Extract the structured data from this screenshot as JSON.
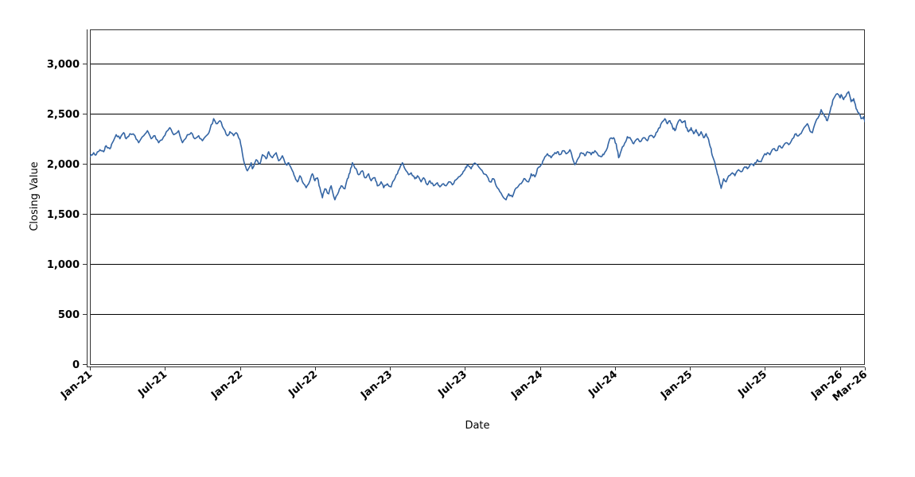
{
  "chart_data": {
    "type": "line",
    "title": "",
    "xlabel": "Date",
    "ylabel": "Closing Value",
    "x_unit": "months since Jan-2021",
    "xlim": [
      0,
      62
    ],
    "ylim": [
      0,
      3341
    ],
    "grid": "horizontal-solid-black",
    "legend": "none",
    "line_color": "#3465a4",
    "x_ticks": [
      {
        "label": "Jan-21",
        "m": 0
      },
      {
        "label": "Jul-21",
        "m": 6
      },
      {
        "label": "Jan-22",
        "m": 12
      },
      {
        "label": "Jul-22",
        "m": 18
      },
      {
        "label": "Jan-23",
        "m": 24
      },
      {
        "label": "Jul-23",
        "m": 30
      },
      {
        "label": "Jan-24",
        "m": 36
      },
      {
        "label": "Jul-24",
        "m": 42
      },
      {
        "label": "Jan-25",
        "m": 48
      },
      {
        "label": "Jul-25",
        "m": 54
      },
      {
        "label": "Jan-26",
        "m": 60
      },
      {
        "label": "Mar-26",
        "m": 62
      }
    ],
    "y_ticks": [
      {
        "label": "0",
        "v": 0
      },
      {
        "label": "500",
        "v": 500
      },
      {
        "label": "1,000",
        "v": 1000
      },
      {
        "label": "1,500",
        "v": 1500
      },
      {
        "label": "2,000",
        "v": 2000
      },
      {
        "label": "2,500",
        "v": 2500
      },
      {
        "label": "3,000",
        "v": 3000
      }
    ],
    "series": [
      {
        "name": "Closing Value",
        "color": "#3465a4",
        "points": [
          [
            0.0,
            2070
          ],
          [
            0.3,
            2110
          ],
          [
            0.5,
            2090
          ],
          [
            0.8,
            2140
          ],
          [
            1.1,
            2120
          ],
          [
            1.3,
            2180
          ],
          [
            1.6,
            2150
          ],
          [
            1.8,
            2210
          ],
          [
            2.1,
            2290
          ],
          [
            2.4,
            2250
          ],
          [
            2.7,
            2310
          ],
          [
            2.9,
            2250
          ],
          [
            3.2,
            2300
          ],
          [
            3.6,
            2280
          ],
          [
            3.9,
            2210
          ],
          [
            4.3,
            2280
          ],
          [
            4.6,
            2330
          ],
          [
            4.9,
            2250
          ],
          [
            5.2,
            2280
          ],
          [
            5.5,
            2210
          ],
          [
            5.9,
            2270
          ],
          [
            6.2,
            2330
          ],
          [
            6.4,
            2360
          ],
          [
            6.7,
            2290
          ],
          [
            7.1,
            2330
          ],
          [
            7.4,
            2210
          ],
          [
            7.8,
            2290
          ],
          [
            8.1,
            2310
          ],
          [
            8.4,
            2250
          ],
          [
            8.7,
            2280
          ],
          [
            9.0,
            2230
          ],
          [
            9.4,
            2290
          ],
          [
            9.6,
            2340
          ],
          [
            9.9,
            2450
          ],
          [
            10.1,
            2400
          ],
          [
            10.4,
            2430
          ],
          [
            10.7,
            2350
          ],
          [
            11.0,
            2280
          ],
          [
            11.2,
            2320
          ],
          [
            11.5,
            2280
          ],
          [
            11.7,
            2310
          ],
          [
            12.0,
            2240
          ],
          [
            12.2,
            2100
          ],
          [
            12.4,
            1990
          ],
          [
            12.6,
            1930
          ],
          [
            12.9,
            2010
          ],
          [
            13.0,
            1950
          ],
          [
            13.3,
            2040
          ],
          [
            13.6,
            2000
          ],
          [
            13.8,
            2090
          ],
          [
            14.1,
            2050
          ],
          [
            14.3,
            2120
          ],
          [
            14.6,
            2060
          ],
          [
            14.9,
            2110
          ],
          [
            15.1,
            2030
          ],
          [
            15.4,
            2080
          ],
          [
            15.7,
            1990
          ],
          [
            15.9,
            2010
          ],
          [
            16.2,
            1930
          ],
          [
            16.4,
            1870
          ],
          [
            16.6,
            1820
          ],
          [
            16.8,
            1880
          ],
          [
            17.1,
            1800
          ],
          [
            17.3,
            1760
          ],
          [
            17.6,
            1830
          ],
          [
            17.8,
            1900
          ],
          [
            18.0,
            1830
          ],
          [
            18.2,
            1860
          ],
          [
            18.4,
            1760
          ],
          [
            18.6,
            1660
          ],
          [
            18.8,
            1750
          ],
          [
            19.1,
            1700
          ],
          [
            19.3,
            1780
          ],
          [
            19.6,
            1640
          ],
          [
            19.9,
            1720
          ],
          [
            20.1,
            1780
          ],
          [
            20.4,
            1750
          ],
          [
            20.6,
            1850
          ],
          [
            20.8,
            1910
          ],
          [
            21.0,
            2010
          ],
          [
            21.3,
            1950
          ],
          [
            21.5,
            1890
          ],
          [
            21.8,
            1930
          ],
          [
            22.0,
            1860
          ],
          [
            22.3,
            1900
          ],
          [
            22.5,
            1830
          ],
          [
            22.8,
            1860
          ],
          [
            23.0,
            1780
          ],
          [
            23.3,
            1820
          ],
          [
            23.5,
            1760
          ],
          [
            23.8,
            1800
          ],
          [
            24.1,
            1770
          ],
          [
            24.3,
            1830
          ],
          [
            24.6,
            1900
          ],
          [
            24.8,
            1960
          ],
          [
            25.0,
            2010
          ],
          [
            25.2,
            1950
          ],
          [
            25.5,
            1890
          ],
          [
            25.7,
            1910
          ],
          [
            26.0,
            1850
          ],
          [
            26.2,
            1880
          ],
          [
            26.5,
            1820
          ],
          [
            26.7,
            1860
          ],
          [
            27.0,
            1790
          ],
          [
            27.2,
            1830
          ],
          [
            27.5,
            1780
          ],
          [
            27.8,
            1810
          ],
          [
            28.0,
            1770
          ],
          [
            28.3,
            1800
          ],
          [
            28.5,
            1780
          ],
          [
            28.8,
            1820
          ],
          [
            29.0,
            1790
          ],
          [
            29.3,
            1840
          ],
          [
            29.5,
            1870
          ],
          [
            29.8,
            1900
          ],
          [
            30.0,
            1940
          ],
          [
            30.2,
            1990
          ],
          [
            30.5,
            1950
          ],
          [
            30.7,
            2000
          ],
          [
            31.0,
            1990
          ],
          [
            31.3,
            1940
          ],
          [
            31.5,
            1900
          ],
          [
            31.8,
            1870
          ],
          [
            32.0,
            1820
          ],
          [
            32.3,
            1850
          ],
          [
            32.5,
            1780
          ],
          [
            32.8,
            1720
          ],
          [
            33.0,
            1680
          ],
          [
            33.3,
            1640
          ],
          [
            33.5,
            1700
          ],
          [
            33.8,
            1670
          ],
          [
            34.0,
            1740
          ],
          [
            34.3,
            1780
          ],
          [
            34.6,
            1820
          ],
          [
            34.8,
            1850
          ],
          [
            35.1,
            1820
          ],
          [
            35.3,
            1900
          ],
          [
            35.6,
            1870
          ],
          [
            35.8,
            1950
          ],
          [
            36.1,
            1990
          ],
          [
            36.3,
            2040
          ],
          [
            36.6,
            2100
          ],
          [
            36.9,
            2060
          ],
          [
            37.1,
            2090
          ],
          [
            37.4,
            2120
          ],
          [
            37.6,
            2090
          ],
          [
            37.9,
            2130
          ],
          [
            38.1,
            2100
          ],
          [
            38.4,
            2140
          ],
          [
            38.6,
            2060
          ],
          [
            38.8,
            1990
          ],
          [
            39.1,
            2060
          ],
          [
            39.3,
            2110
          ],
          [
            39.6,
            2080
          ],
          [
            39.8,
            2120
          ],
          [
            40.1,
            2090
          ],
          [
            40.4,
            2130
          ],
          [
            40.6,
            2100
          ],
          [
            40.9,
            2070
          ],
          [
            41.1,
            2090
          ],
          [
            41.4,
            2160
          ],
          [
            41.6,
            2250
          ],
          [
            41.9,
            2260
          ],
          [
            42.1,
            2200
          ],
          [
            42.3,
            2060
          ],
          [
            42.5,
            2130
          ],
          [
            42.8,
            2210
          ],
          [
            43.0,
            2270
          ],
          [
            43.3,
            2240
          ],
          [
            43.5,
            2200
          ],
          [
            43.8,
            2250
          ],
          [
            44.0,
            2220
          ],
          [
            44.3,
            2260
          ],
          [
            44.6,
            2230
          ],
          [
            44.8,
            2280
          ],
          [
            45.1,
            2260
          ],
          [
            45.3,
            2310
          ],
          [
            45.6,
            2360
          ],
          [
            45.8,
            2420
          ],
          [
            46.0,
            2450
          ],
          [
            46.2,
            2400
          ],
          [
            46.4,
            2430
          ],
          [
            46.6,
            2370
          ],
          [
            46.8,
            2330
          ],
          [
            47.0,
            2400
          ],
          [
            47.2,
            2440
          ],
          [
            47.4,
            2410
          ],
          [
            47.6,
            2430
          ],
          [
            47.7,
            2360
          ],
          [
            47.9,
            2320
          ],
          [
            48.1,
            2360
          ],
          [
            48.3,
            2300
          ],
          [
            48.5,
            2340
          ],
          [
            48.7,
            2280
          ],
          [
            48.9,
            2320
          ],
          [
            49.1,
            2260
          ],
          [
            49.3,
            2300
          ],
          [
            49.5,
            2240
          ],
          [
            49.7,
            2150
          ],
          [
            49.8,
            2080
          ],
          [
            50.0,
            2010
          ],
          [
            50.2,
            1900
          ],
          [
            50.4,
            1800
          ],
          [
            50.5,
            1755
          ],
          [
            50.7,
            1850
          ],
          [
            50.9,
            1820
          ],
          [
            51.1,
            1880
          ],
          [
            51.4,
            1910
          ],
          [
            51.6,
            1880
          ],
          [
            51.9,
            1940
          ],
          [
            52.1,
            1920
          ],
          [
            52.4,
            1970
          ],
          [
            52.6,
            1950
          ],
          [
            52.9,
            2000
          ],
          [
            53.1,
            1980
          ],
          [
            53.4,
            2040
          ],
          [
            53.7,
            2020
          ],
          [
            53.9,
            2080
          ],
          [
            54.2,
            2110
          ],
          [
            54.4,
            2090
          ],
          [
            54.7,
            2150
          ],
          [
            54.9,
            2130
          ],
          [
            55.2,
            2180
          ],
          [
            55.4,
            2160
          ],
          [
            55.7,
            2210
          ],
          [
            55.9,
            2190
          ],
          [
            56.2,
            2250
          ],
          [
            56.5,
            2300
          ],
          [
            56.7,
            2280
          ],
          [
            57.0,
            2330
          ],
          [
            57.2,
            2370
          ],
          [
            57.4,
            2400
          ],
          [
            57.6,
            2330
          ],
          [
            57.8,
            2310
          ],
          [
            58.1,
            2430
          ],
          [
            58.3,
            2470
          ],
          [
            58.5,
            2540
          ],
          [
            58.8,
            2470
          ],
          [
            59.0,
            2430
          ],
          [
            59.3,
            2570
          ],
          [
            59.5,
            2650
          ],
          [
            59.8,
            2700
          ],
          [
            60.0,
            2660
          ],
          [
            60.1,
            2690
          ],
          [
            60.3,
            2640
          ],
          [
            60.5,
            2680
          ],
          [
            60.7,
            2720
          ],
          [
            60.9,
            2620
          ],
          [
            61.1,
            2650
          ],
          [
            61.3,
            2550
          ],
          [
            61.5,
            2510
          ],
          [
            61.7,
            2450
          ],
          [
            61.9,
            2470
          ],
          [
            62.0,
            2420
          ]
        ],
        "jitter": {
          "substeps": 3,
          "amplitude": 15,
          "seed": 987654321
        }
      }
    ]
  }
}
